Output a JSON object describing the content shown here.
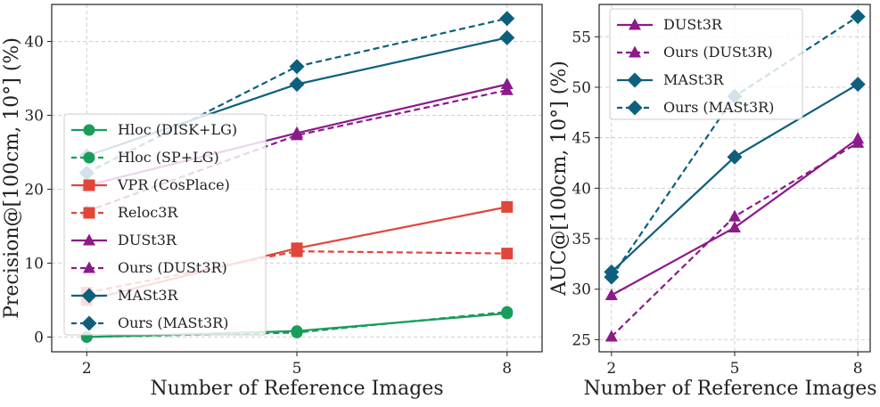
{
  "chart_data": [
    {
      "type": "line",
      "xlabel": "Number of Reference Images",
      "ylabel": "Precision@[100cm, 10°] (%)",
      "x": [
        2,
        5,
        8
      ],
      "xticks": [
        "2",
        "5",
        "8"
      ],
      "ylim": [
        -2,
        45
      ],
      "yticks": [
        0,
        10,
        20,
        30,
        40
      ],
      "grid": true,
      "legend_position": "middle-left",
      "series": [
        {
          "name": "Hloc (DISK+LG)",
          "values": [
            0.0,
            0.8,
            3.2
          ],
          "color": "#1a9c5b",
          "dash": false,
          "marker": "circle"
        },
        {
          "name": "Hloc (SP+LG)",
          "values": [
            0.0,
            0.6,
            3.4
          ],
          "color": "#1a9c5b",
          "dash": true,
          "marker": "circle"
        },
        {
          "name": "VPR (CosPlace)",
          "values": [
            5.0,
            12.0,
            17.6
          ],
          "color": "#e0463a",
          "dash": false,
          "marker": "square"
        },
        {
          "name": "Reloc3R",
          "values": [
            6.0,
            11.6,
            11.3
          ],
          "color": "#e0463a",
          "dash": true,
          "marker": "square"
        },
        {
          "name": "DUSt3R",
          "values": [
            20.5,
            27.6,
            34.2
          ],
          "color": "#8c1a8a",
          "dash": false,
          "marker": "triangle"
        },
        {
          "name": "Ours (DUSt3R)",
          "values": [
            17.0,
            27.3,
            33.4
          ],
          "color": "#8c1a8a",
          "dash": true,
          "marker": "triangle"
        },
        {
          "name": "MASt3R",
          "values": [
            24.5,
            34.2,
            40.5
          ],
          "color": "#0e5f7e",
          "dash": false,
          "marker": "diamond"
        },
        {
          "name": "Ours (MASt3R)",
          "values": [
            22.2,
            36.6,
            43.1
          ],
          "color": "#0e5f7e",
          "dash": true,
          "marker": "diamond"
        }
      ]
    },
    {
      "type": "line",
      "xlabel": "Number of Reference Images",
      "ylabel": "AUC@[100cm, 10°] (%)",
      "x": [
        2,
        5,
        8
      ],
      "xticks": [
        "2",
        "5",
        "8"
      ],
      "ylim": [
        23.8,
        58.2
      ],
      "yticks": [
        25,
        30,
        35,
        40,
        45,
        50,
        55
      ],
      "grid": true,
      "legend_position": "top-left",
      "series": [
        {
          "name": "DUSt3R",
          "values": [
            29.4,
            36.1,
            44.9
          ],
          "color": "#8c1a8a",
          "dash": false,
          "marker": "triangle"
        },
        {
          "name": "Ours (DUSt3R)",
          "values": [
            25.3,
            37.2,
            44.5
          ],
          "color": "#8c1a8a",
          "dash": true,
          "marker": "triangle"
        },
        {
          "name": "MASt3R",
          "values": [
            31.7,
            43.1,
            50.3
          ],
          "color": "#0e5f7e",
          "dash": false,
          "marker": "diamond"
        },
        {
          "name": "Ours (MASt3R)",
          "values": [
            31.2,
            49.1,
            57.0
          ],
          "color": "#0e5f7e",
          "dash": true,
          "marker": "diamond"
        }
      ]
    }
  ]
}
